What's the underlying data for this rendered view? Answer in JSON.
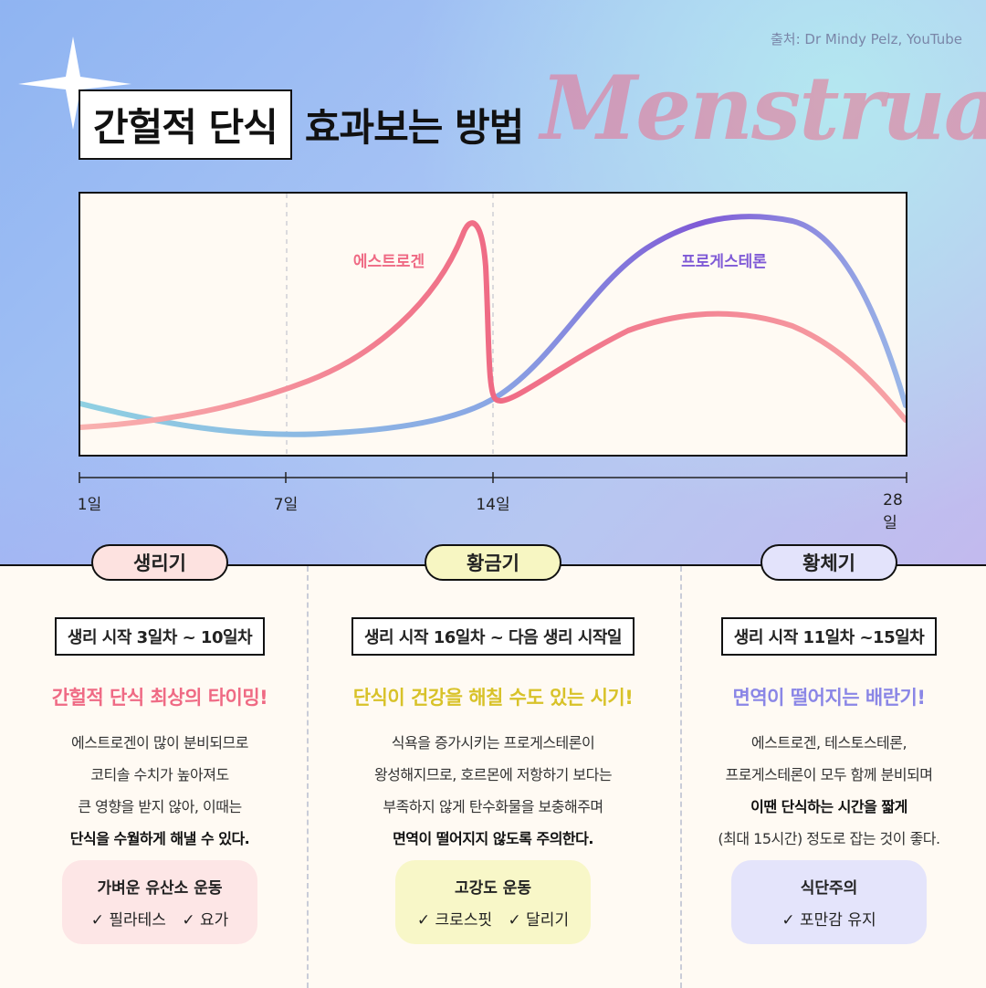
{
  "source": "출처: Dr Mindy Pelz, YouTube",
  "title": {
    "boxed": "간헐적 단식",
    "rest": "효과보는 방법",
    "script": "Menstrual"
  },
  "chart": {
    "labels": {
      "estrogen": "에스트로겐",
      "progesterone": "프로게스테론"
    },
    "axis_ticks": [
      "1일",
      "7일",
      "14일",
      "28일"
    ],
    "colors": {
      "estrogen": "#ef6a84",
      "progesterone": "#7f5ad6",
      "baseline": "#8fd0e2"
    }
  },
  "phases": [
    {
      "name": "생리기",
      "range": "생리 시작 3일차 ~ 10일차",
      "headline": "간헐적 단식 최상의 타이밍!",
      "desc": [
        "에스트로겐이 많이 분비되므로",
        "코티솔 수치가 높아져도",
        "큰 영향을 받지 않아, 이때는"
      ],
      "desc_bold": "단식을 수월하게 해낼 수 있다.",
      "card_title": "가벼운 유산소 운동",
      "card_items": [
        "✓ 필라테스",
        "✓ 요가"
      ],
      "colors": {
        "pill": "#fde2e0",
        "headline": "#ef6a84",
        "card": "#fde6e6"
      }
    },
    {
      "name": "황금기",
      "range": "생리 시작 16일차 ~ 다음 생리 시작일",
      "headline": "단식이 건강을 해칠 수도 있는 시기!",
      "desc": [
        "식욕을 증가시키는 프로게스테론이",
        "왕성해지므로, 호르몬에 저항하기 보다는",
        "부족하지 않게 탄수화물을 보충해주며"
      ],
      "desc_bold": "면역이 떨어지지 않도록 주의한다.",
      "card_title": "고강도 운동",
      "card_items": [
        "✓ 크로스핏",
        "✓ 달리기"
      ],
      "colors": {
        "pill": "#f7f6c2",
        "headline": "#d8c229",
        "card": "#f8f7c8"
      }
    },
    {
      "name": "황체기",
      "range": "생리 시작 11일차 ~15일차",
      "headline": "면역이 떨어지는 배란기!",
      "desc": [
        "에스트로겐, 테스토스테론,",
        "프로게스테론이 모두 함께 분비되며"
      ],
      "desc_bold": "이땐 단식하는 시간을 짧게",
      "desc_after": "(최대 15시간) 정도로 잡는 것이 좋다.",
      "card_title": "식단주의",
      "card_items": [
        "✓ 포만감 유지"
      ],
      "colors": {
        "pill": "#e3e3fb",
        "headline": "#8a86e6",
        "card": "#e4e4fb"
      }
    }
  ]
}
